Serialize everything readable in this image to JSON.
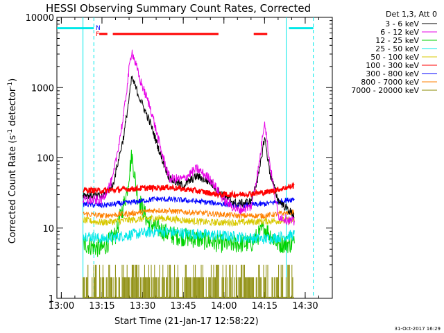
{
  "chart_data": {
    "type": "line",
    "title": "HESSI Observing Summary Count Rates, Corrected",
    "xlabel": "Start Time (21-Jan-17 12:58:22)",
    "ylabel": "Corrected Count Rate (s⁻¹ detector⁻¹)",
    "ylabel_main": "Corrected Count Rate",
    "ylabel_units": "(s",
    "ylabel_sup1": "-1",
    "ylabel_mid": " detector",
    "ylabel_sup2": "-1",
    "ylabel_close": ")",
    "footer": "31-Oct-2017 16:29",
    "y_scale": "log",
    "xlim": [
      "12:58:22",
      "14:40:00"
    ],
    "ylim": [
      1,
      10000
    ],
    "x_ticks": [
      "13:00",
      "13:15",
      "13:30",
      "13:45",
      "14:00",
      "14:15",
      "14:30"
    ],
    "y_ticks": [
      "1",
      "10",
      "100",
      "1000",
      "10000"
    ],
    "grid": false,
    "legend_position": "top-right",
    "legend_header": "Det 1,3, Att 0",
    "flag_labels": [
      "N",
      "F"
    ],
    "colors": {
      "3 - 6 keV": "#000000",
      "6 - 12 keV": "#e600e6",
      "12 - 25 keV": "#00d200",
      "25 - 50 keV": "#00e8e8",
      "50 - 100 keV": "#d8c800",
      "100 - 300 keV": "#ff0000",
      "300 - 800 keV": "#0000ff",
      "800 - 7000 keV": "#ff8000",
      "7000 - 20000 keV": "#888800"
    },
    "series": [
      {
        "name": "3 - 6 keV",
        "points": [
          [
            "13:08",
            30
          ],
          [
            "13:15",
            28
          ],
          [
            "13:19",
            40
          ],
          [
            "13:23",
            200
          ],
          [
            "13:25",
            700
          ],
          [
            "13:26",
            1400
          ],
          [
            "13:29",
            700
          ],
          [
            "13:33",
            300
          ],
          [
            "13:37",
            100
          ],
          [
            "13:40",
            50
          ],
          [
            "13:45",
            40
          ],
          [
            "13:50",
            55
          ],
          [
            "13:55",
            45
          ],
          [
            "14:00",
            28
          ],
          [
            "14:05",
            22
          ],
          [
            "14:10",
            24
          ],
          [
            "14:13",
            60
          ],
          [
            "14:15",
            200
          ],
          [
            "14:17",
            60
          ],
          [
            "14:20",
            25
          ],
          [
            "14:26",
            15
          ]
        ]
      },
      {
        "name": "6 - 12 keV",
        "points": [
          [
            "13:08",
            25
          ],
          [
            "13:15",
            25
          ],
          [
            "13:19",
            50
          ],
          [
            "13:23",
            400
          ],
          [
            "13:25",
            1800
          ],
          [
            "13:26",
            3400
          ],
          [
            "13:29",
            1300
          ],
          [
            "13:33",
            500
          ],
          [
            "13:37",
            120
          ],
          [
            "13:40",
            50
          ],
          [
            "13:45",
            50
          ],
          [
            "13:50",
            70
          ],
          [
            "13:55",
            50
          ],
          [
            "14:00",
            25
          ],
          [
            "14:05",
            18
          ],
          [
            "14:10",
            20
          ],
          [
            "14:13",
            80
          ],
          [
            "14:15",
            350
          ],
          [
            "14:17",
            80
          ],
          [
            "14:20",
            15
          ],
          [
            "14:26",
            12
          ]
        ]
      },
      {
        "name": "12 - 25 keV",
        "points": [
          [
            "13:08",
            6
          ],
          [
            "13:15",
            5
          ],
          [
            "13:20",
            8
          ],
          [
            "13:24",
            30
          ],
          [
            "13:26",
            110
          ],
          [
            "13:28",
            30
          ],
          [
            "13:32",
            12
          ],
          [
            "13:40",
            8
          ],
          [
            "13:50",
            7
          ],
          [
            "14:00",
            6
          ],
          [
            "14:10",
            6
          ],
          [
            "14:15",
            10
          ],
          [
            "14:20",
            6
          ],
          [
            "14:26",
            6
          ]
        ]
      },
      {
        "name": "25 - 50 keV",
        "points": [
          [
            "13:08",
            8
          ],
          [
            "13:15",
            7
          ],
          [
            "13:25",
            8
          ],
          [
            "13:35",
            9
          ],
          [
            "13:45",
            8.5
          ],
          [
            "13:55",
            8
          ],
          [
            "14:05",
            7.5
          ],
          [
            "14:15",
            7
          ],
          [
            "14:26",
            8
          ]
        ]
      },
      {
        "name": "50 - 100 keV",
        "points": [
          [
            "13:08",
            13
          ],
          [
            "13:15",
            12
          ],
          [
            "13:25",
            13
          ],
          [
            "13:35",
            14
          ],
          [
            "13:45",
            13
          ],
          [
            "13:55",
            12
          ],
          [
            "14:05",
            12
          ],
          [
            "14:15",
            12.5
          ],
          [
            "14:26",
            13
          ]
        ]
      },
      {
        "name": "100 - 300 keV",
        "points": [
          [
            "13:08",
            35
          ],
          [
            "13:15",
            34
          ],
          [
            "13:20",
            35
          ],
          [
            "13:30",
            37
          ],
          [
            "13:40",
            38
          ],
          [
            "13:50",
            34
          ],
          [
            "13:58",
            30
          ],
          [
            "14:05",
            30
          ],
          [
            "14:15",
            32
          ],
          [
            "14:26",
            40
          ]
        ]
      },
      {
        "name": "300 - 800 keV",
        "points": [
          [
            "13:08",
            22
          ],
          [
            "13:15",
            21
          ],
          [
            "13:25",
            23
          ],
          [
            "13:35",
            26
          ],
          [
            "13:45",
            25
          ],
          [
            "13:55",
            23
          ],
          [
            "14:05",
            21
          ],
          [
            "14:15",
            22
          ],
          [
            "14:26",
            26
          ]
        ]
      },
      {
        "name": "800 - 7000 keV",
        "points": [
          [
            "13:08",
            16
          ],
          [
            "13:15",
            15
          ],
          [
            "13:25",
            16
          ],
          [
            "13:35",
            18
          ],
          [
            "13:45",
            17
          ],
          [
            "13:55",
            16
          ],
          [
            "14:05",
            15
          ],
          [
            "14:15",
            15
          ],
          [
            "14:26",
            17
          ]
        ]
      },
      {
        "name": "7000 - 20000 keV",
        "points": [
          [
            "13:08",
            1.5
          ],
          [
            "13:30",
            1.5
          ],
          [
            "14:00",
            1.5
          ],
          [
            "14:26",
            1.5
          ]
        ]
      }
    ]
  }
}
